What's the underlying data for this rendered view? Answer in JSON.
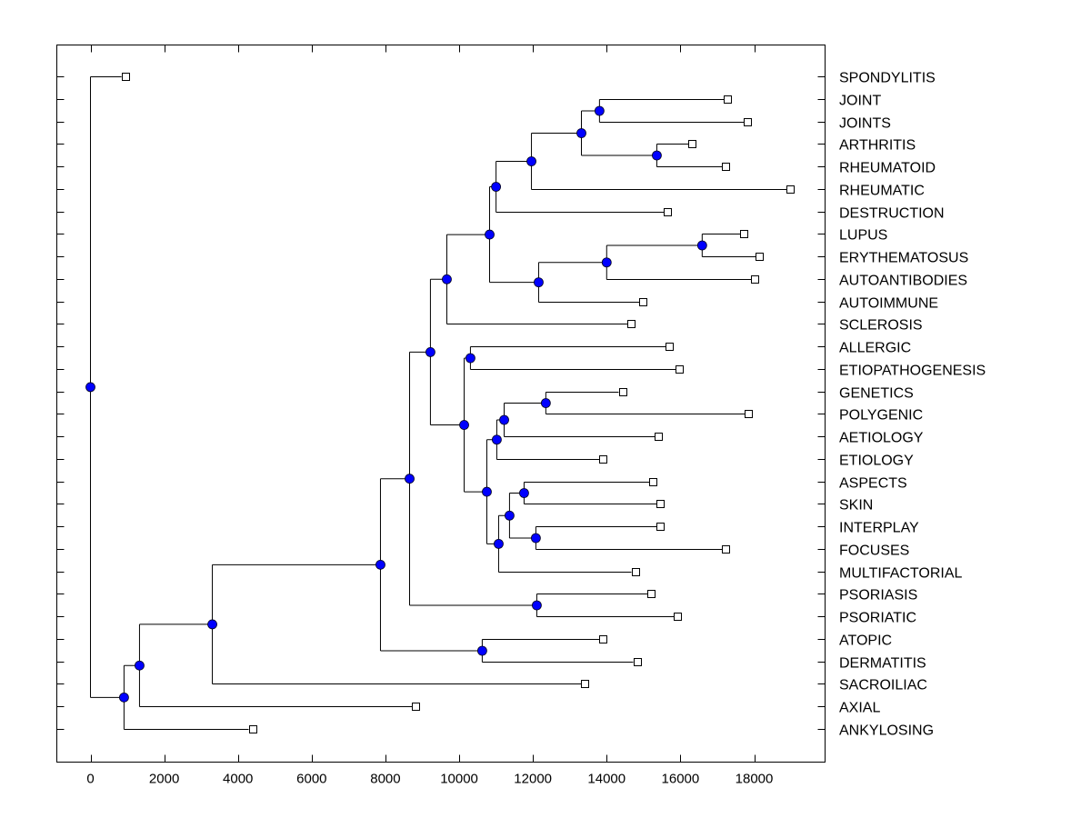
{
  "chart_data": {
    "type": "dendrogram",
    "title": "",
    "xlabel": "",
    "ylabel": "",
    "xlim": [
      -900,
      19900
    ],
    "x_ticks": [
      0,
      2000,
      4000,
      6000,
      8000,
      10000,
      12000,
      14000,
      16000,
      18000
    ],
    "x_tick_labels": [
      "0",
      "2000",
      "4000",
      "6000",
      "8000",
      "10000",
      "12000",
      "14000",
      "16000",
      "18000"
    ],
    "grid": false,
    "node_color": "#0000ff",
    "leaves": [
      {
        "label": "SPONDYLITIS",
        "x": 940
      },
      {
        "label": "JOINT",
        "x": 17280
      },
      {
        "label": "JOINTS",
        "x": 17825
      },
      {
        "label": "ARTHRITIS",
        "x": 16320
      },
      {
        "label": "RHEUMATOID",
        "x": 17230
      },
      {
        "label": "RHEUMATIC",
        "x": 18980
      },
      {
        "label": "DESTRUCTION",
        "x": 15655
      },
      {
        "label": "LUPUS",
        "x": 17725
      },
      {
        "label": "ERYTHEMATOSUS",
        "x": 18145
      },
      {
        "label": "AUTOANTIBODIES",
        "x": 18020
      },
      {
        "label": "AUTOIMMUNE",
        "x": 14990
      },
      {
        "label": "SCLEROSIS",
        "x": 14670
      },
      {
        "label": "ALLERGIC",
        "x": 15705
      },
      {
        "label": "ETIOPATHOGENESIS",
        "x": 15975
      },
      {
        "label": "GENETICS",
        "x": 14425
      },
      {
        "label": "POLYGENIC",
        "x": 17850
      },
      {
        "label": "AETIOLOGY",
        "x": 15410
      },
      {
        "label": "ETIOLOGY",
        "x": 13905
      },
      {
        "label": "ASPECTS",
        "x": 15260
      },
      {
        "label": "SKIN",
        "x": 15460
      },
      {
        "label": "INTERPLAY",
        "x": 15460
      },
      {
        "label": "FOCUSES",
        "x": 17230
      },
      {
        "label": "MULTIFACTORIAL",
        "x": 14770
      },
      {
        "label": "PSORIASIS",
        "x": 15210
      },
      {
        "label": "PSORIATIC",
        "x": 15925
      },
      {
        "label": "ATOPIC",
        "x": 13905
      },
      {
        "label": "DERMATITIS",
        "x": 14820
      },
      {
        "label": "SACROILIAC",
        "x": 13410
      },
      {
        "label": "AXIAL",
        "x": 8825
      },
      {
        "label": "ANKYLOSING",
        "x": 4390
      }
    ],
    "merges": [
      {
        "id": "n1",
        "children": [
          "JOINT",
          "JOINTS"
        ],
        "x": 13805
      },
      {
        "id": "n2",
        "children": [
          "ARTHRITIS",
          "RHEUMATOID"
        ],
        "x": 15360
      },
      {
        "id": "n3",
        "children": [
          "n1",
          "n2"
        ],
        "x": 13315
      },
      {
        "id": "n4",
        "children": [
          "n3",
          "RHEUMATIC"
        ],
        "x": 11960
      },
      {
        "id": "n5",
        "children": [
          "n4",
          "DESTRUCTION"
        ],
        "x": 11000
      },
      {
        "id": "n6",
        "children": [
          "LUPUS",
          "ERYTHEMATOSUS"
        ],
        "x": 16590
      },
      {
        "id": "n7",
        "children": [
          "n6",
          "AUTOANTIBODIES"
        ],
        "x": 14000
      },
      {
        "id": "n8",
        "children": [
          "n7",
          "AUTOIMMUNE"
        ],
        "x": 12155
      },
      {
        "id": "n9",
        "children": [
          "n5",
          "n8"
        ],
        "x": 10825
      },
      {
        "id": "n10",
        "children": [
          "n9",
          "SCLEROSIS"
        ],
        "x": 9665
      },
      {
        "id": "n11",
        "children": [
          "ALLERGIC",
          "ETIOPATHOGENESIS"
        ],
        "x": 10305
      },
      {
        "id": "n12",
        "children": [
          "GENETICS",
          "POLYGENIC"
        ],
        "x": 12350
      },
      {
        "id": "n13",
        "children": [
          "n12",
          "AETIOLOGY"
        ],
        "x": 11220
      },
      {
        "id": "n14",
        "children": [
          "n13",
          "ETIOLOGY"
        ],
        "x": 11020
      },
      {
        "id": "n15",
        "children": [
          "ASPECTS",
          "SKIN"
        ],
        "x": 11760
      },
      {
        "id": "n16",
        "children": [
          "INTERPLAY",
          "FOCUSES"
        ],
        "x": 12080
      },
      {
        "id": "n17",
        "children": [
          "n15",
          "n16"
        ],
        "x": 11365
      },
      {
        "id": "n18",
        "children": [
          "n17",
          "MULTIFACTORIAL"
        ],
        "x": 11070
      },
      {
        "id": "n19",
        "children": [
          "n14",
          "n18"
        ],
        "x": 10750
      },
      {
        "id": "n20",
        "children": [
          "n11",
          "n19"
        ],
        "x": 10135
      },
      {
        "id": "n21",
        "children": [
          "n10",
          "n20"
        ],
        "x": 9220
      },
      {
        "id": "n22",
        "children": [
          "PSORIASIS",
          "PSORIATIC"
        ],
        "x": 12105
      },
      {
        "id": "n23",
        "children": [
          "n21",
          "n22"
        ],
        "x": 8655
      },
      {
        "id": "n24",
        "children": [
          "ATOPIC",
          "DERMATITIS"
        ],
        "x": 10625
      },
      {
        "id": "n25",
        "children": [
          "n23",
          "n24"
        ],
        "x": 7865
      },
      {
        "id": "n26",
        "children": [
          "n25",
          "SACROILIAC"
        ],
        "x": 3305
      },
      {
        "id": "n27",
        "children": [
          "n26",
          "AXIAL"
        ],
        "x": 1330
      },
      {
        "id": "n28",
        "children": [
          "n27",
          "ANKYLOSING"
        ],
        "x": 910
      },
      {
        "id": "n29",
        "children": [
          "SPONDYLITIS",
          "n28"
        ],
        "x": 0
      }
    ]
  }
}
